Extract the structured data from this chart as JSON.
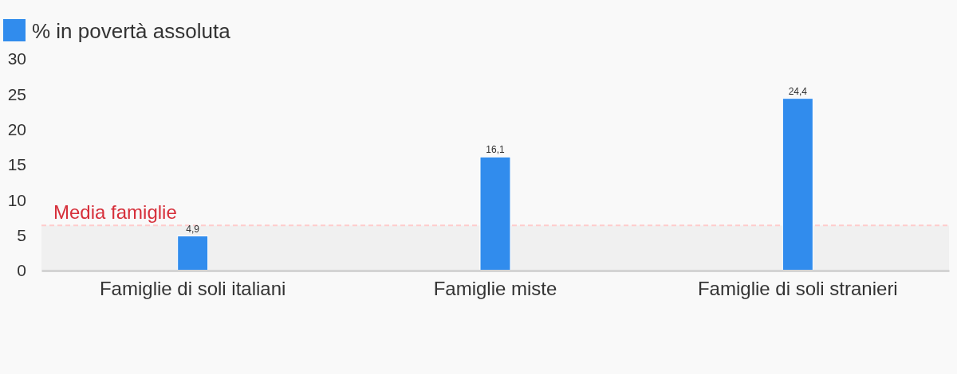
{
  "chart_data": {
    "type": "bar",
    "categories": [
      "Famiglie di soli italiani",
      "Famiglie miste",
      "Famiglie di soli stranieri"
    ],
    "series": [
      {
        "name": "% in povertà assoluta",
        "color": "#318ced",
        "values": [
          4.9,
          16.1,
          24.4
        ],
        "value_labels": [
          "4,9",
          "16,1",
          "24,4"
        ]
      }
    ],
    "ylim": [
      0,
      30
    ],
    "yticks": [
      0,
      5,
      10,
      15,
      20,
      25,
      30
    ],
    "grid": false,
    "legend": "top left",
    "ref_lines": [
      {
        "axis": "y",
        "value": 6.4,
        "label": "Media famiglie",
        "color": "#ffcccc",
        "line_style": "dashed"
      }
    ],
    "bands": [
      {
        "axis": "y",
        "from": 0,
        "to": 6.4,
        "color": "#f0f0f0"
      }
    ]
  }
}
